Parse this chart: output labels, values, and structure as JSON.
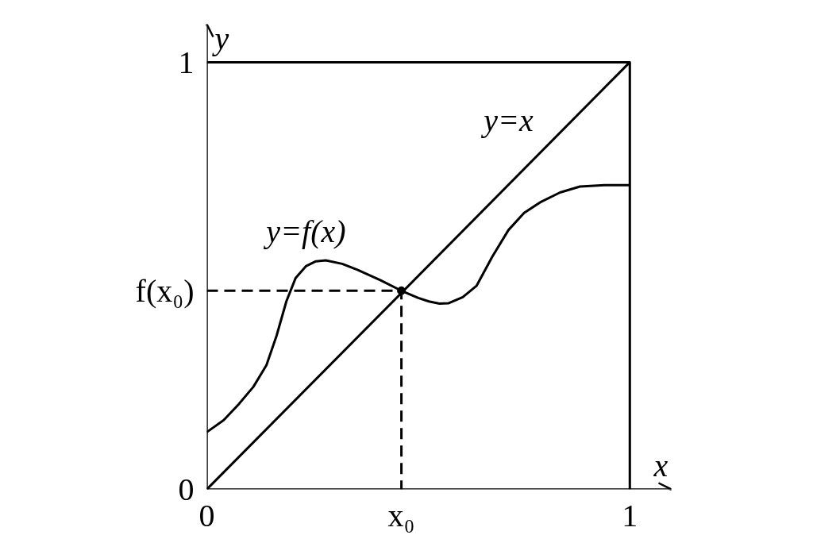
{
  "chart_data": {
    "type": "line",
    "xlabel": "x",
    "ylabel": "y",
    "xlim": [
      0,
      1.098
    ],
    "ylim": [
      0,
      1.089
    ],
    "xticks": [
      {
        "value": 0,
        "label": "0"
      },
      {
        "value": 0.46,
        "label": "x₀"
      },
      1
    ],
    "yticks": [
      {
        "value": 0,
        "label": "0"
      },
      {
        "value": 0.465,
        "label": "f(x₀)"
      },
      1
    ],
    "grid": false,
    "marker": "none",
    "series": [
      {
        "color": "#000000",
        "line_style": "solid",
        "x": [
          0,
          0.04,
          0.075,
          0.11,
          0.141,
          0.165,
          0.188,
          0.21,
          0.235,
          0.258,
          0.281,
          0.32,
          0.356,
          0.41,
          0.46,
          0.5,
          0.525,
          0.55,
          0.572,
          0.605,
          0.638,
          0.675,
          0.713,
          0.75,
          0.788,
          0.835,
          0.882,
          0.94,
          1
        ],
        "values": [
          0.134,
          0.162,
          0.199,
          0.24,
          0.291,
          0.36,
          0.44,
          0.495,
          0.523,
          0.534,
          0.536,
          0.528,
          0.514,
          0.49,
          0.465,
          0.448,
          0.44,
          0.435,
          0.436,
          0.45,
          0.477,
          0.545,
          0.607,
          0.647,
          0.672,
          0.695,
          0.709,
          0.712,
          0.712
        ]
      },
      {
        "color": "#000000",
        "line_style": "solid",
        "x": [
          0,
          1
        ],
        "values": [
          0,
          1
        ]
      },
      {
        "color": "#000000",
        "line_style": "solid",
        "x": [
          0,
          1,
          1
        ],
        "values": [
          1,
          1,
          0
        ]
      },
      {
        "color": "#000000",
        "line_style": "dashed",
        "x": [
          0,
          0.46,
          0.46
        ],
        "values": [
          0.465,
          0.465,
          0
        ]
      },
      {
        "type": "scatter",
        "color": "#000000",
        "marker": "circle",
        "x": [
          0.46
        ],
        "values": [
          0.465
        ]
      }
    ],
    "annotations": [
      "y=x",
      "y=f(x)"
    ]
  }
}
